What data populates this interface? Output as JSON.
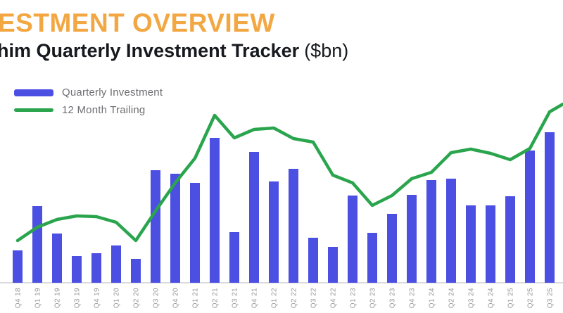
{
  "header": {
    "title_visible": "ESTMENT OVERVIEW",
    "subtitle_bold_visible": "him Quarterly Investment Tracker",
    "subtitle_units": "($bn)"
  },
  "legend": {
    "items": [
      {
        "label": "Quarterly Investment",
        "swatch": "bar-swatch"
      },
      {
        "label": "12 Month Trailing",
        "swatch": "line-swatch"
      }
    ]
  },
  "colors": {
    "title_orange": "#F2A742",
    "subtitle_dark": "#16191E",
    "legend_text_gray": "#6E6E72",
    "axis_label_gray": "#97979C",
    "axis_line_gray": "#DBDBDB",
    "bar_blue": "#4B4FE2",
    "line_green": "#2AA54D",
    "background": "#FFFFFF"
  },
  "chart_data": {
    "type": "bar",
    "subtype": "bar-with-trailing-line",
    "title": "Quarterly Investment Tracker ($bn)",
    "xlabel": "",
    "ylabel": "",
    "y_axis_visible": false,
    "grid": false,
    "legend_position": "top-left",
    "ylim": [
      0,
      13
    ],
    "axis_note": "no y-axis shown in chart; values estimated from bar heights, $bn",
    "categories": [
      "Q4 18",
      "Q1 19",
      "Q2 19",
      "Q3 19",
      "Q4 19",
      "Q1 20",
      "Q2 20",
      "Q3 20",
      "Q4 20",
      "Q1 21",
      "Q2 21",
      "Q3 21",
      "Q4 21",
      "Q1 22",
      "Q2 22",
      "Q3 22",
      "Q4 22",
      "Q1 23",
      "Q2 23",
      "Q3 23",
      "Q4 23",
      "Q1 24",
      "Q2 24",
      "Q3 24",
      "Q4 24",
      "Q1 25",
      "Q2 25",
      "Q3 25"
    ],
    "series": [
      {
        "name": "Quarterly Investment",
        "type": "bar",
        "color": "#4B4FE2",
        "values": [
          2.3,
          5.45,
          3.5,
          1.9,
          2.1,
          2.65,
          1.7,
          8.0,
          7.75,
          7.1,
          10.3,
          3.6,
          9.3,
          7.2,
          8.1,
          3.2,
          2.55,
          6.2,
          3.55,
          4.9,
          6.25,
          7.3,
          7.4,
          5.5,
          5.5,
          6.15,
          9.4,
          10.7
        ]
      },
      {
        "name": "12 Month Trailing",
        "type": "line",
        "color": "#2AA54D",
        "values": [
          3.0,
          3.95,
          4.5,
          4.75,
          4.7,
          4.3,
          3.0,
          5.1,
          7.1,
          8.85,
          11.9,
          10.3,
          10.9,
          11.0,
          10.25,
          10.0,
          7.65,
          7.1,
          5.5,
          6.2,
          7.4,
          7.85,
          9.25,
          9.5,
          9.2,
          8.75,
          9.55,
          12.15
        ],
        "edge_value": 12.7
      }
    ]
  }
}
